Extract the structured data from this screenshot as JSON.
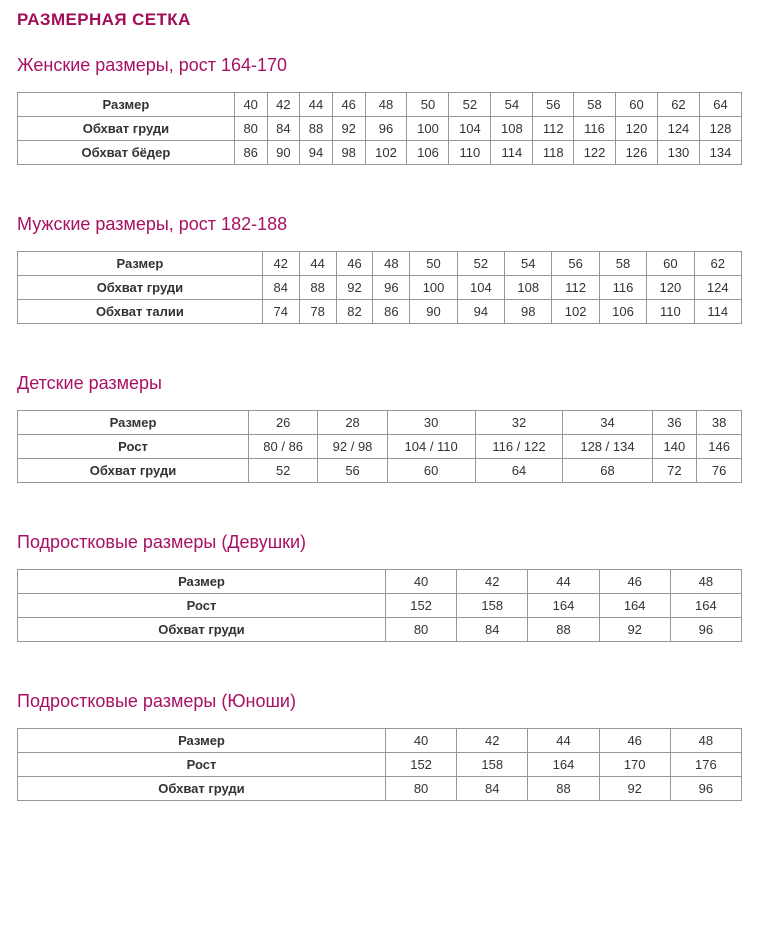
{
  "page": {
    "title": "РАЗМЕРНАЯ СЕТКА"
  },
  "colors": {
    "title": "#a10d58",
    "heading": "#a81163",
    "table_border": "#979797",
    "cell_text": "#333333",
    "background": "#ffffff"
  },
  "sections": [
    {
      "heading": "Женские размеры, рост 164-170",
      "rows": [
        {
          "label": "Размер",
          "values": [
            "40",
            "42",
            "44",
            "46",
            "48",
            "50",
            "52",
            "54",
            "56",
            "58",
            "60",
            "62",
            "64"
          ]
        },
        {
          "label": "Обхват груди",
          "values": [
            "80",
            "84",
            "88",
            "92",
            "96",
            "100",
            "104",
            "108",
            "112",
            "116",
            "120",
            "124",
            "128"
          ]
        },
        {
          "label": "Обхват бёдер",
          "values": [
            "86",
            "90",
            "94",
            "98",
            "102",
            "106",
            "110",
            "114",
            "118",
            "122",
            "126",
            "130",
            "134"
          ]
        }
      ]
    },
    {
      "heading": "Мужские размеры, рост 182-188",
      "rows": [
        {
          "label": "Размер",
          "values": [
            "42",
            "44",
            "46",
            "48",
            "50",
            "52",
            "54",
            "56",
            "58",
            "60",
            "62"
          ]
        },
        {
          "label": "Обхват груди",
          "values": [
            "84",
            "88",
            "92",
            "96",
            "100",
            "104",
            "108",
            "112",
            "116",
            "120",
            "124"
          ]
        },
        {
          "label": "Обхват талии",
          "values": [
            "74",
            "78",
            "82",
            "86",
            "90",
            "94",
            "98",
            "102",
            "106",
            "110",
            "114"
          ]
        }
      ]
    },
    {
      "heading": "Детские размеры",
      "rows": [
        {
          "label": "Размер",
          "values": [
            "26",
            "28",
            "30",
            "32",
            "34",
            "36",
            "38"
          ]
        },
        {
          "label": "Рост",
          "values": [
            "80 / 86",
            "92 / 98",
            "104 / 110",
            "116 / 122",
            "128 / 134",
            "140",
            "146"
          ]
        },
        {
          "label": "Обхват груди",
          "values": [
            "52",
            "56",
            "60",
            "64",
            "68",
            "72",
            "76"
          ]
        }
      ]
    },
    {
      "heading": "Подростковые размеры (Девушки)",
      "rows": [
        {
          "label": "Размер",
          "values": [
            "40",
            "42",
            "44",
            "46",
            "48"
          ]
        },
        {
          "label": "Рост",
          "values": [
            "152",
            "158",
            "164",
            "164",
            "164"
          ]
        },
        {
          "label": "Обхват груди",
          "values": [
            "80",
            "84",
            "88",
            "92",
            "96"
          ]
        }
      ]
    },
    {
      "heading": "Подростковые размеры (Юноши)",
      "rows": [
        {
          "label": "Размер",
          "values": [
            "40",
            "42",
            "44",
            "46",
            "48"
          ]
        },
        {
          "label": "Рост",
          "values": [
            "152",
            "158",
            "164",
            "170",
            "176"
          ]
        },
        {
          "label": "Обхват груди",
          "values": [
            "80",
            "84",
            "88",
            "92",
            "96"
          ]
        }
      ]
    }
  ]
}
